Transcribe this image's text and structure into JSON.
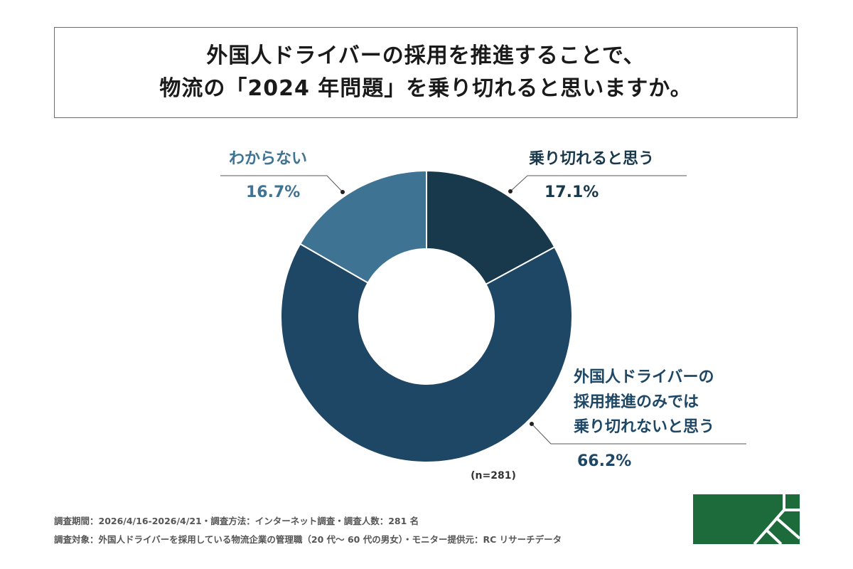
{
  "title": {
    "line1": "外国人ドライバーの採用を推進することで、",
    "line2": "物流の「2024 年問題」を乗り切れると思いますか。"
  },
  "chart_data": {
    "type": "pie",
    "donut": true,
    "n_label": "(n=281)",
    "slices": [
      {
        "label": "乗り切れると思う",
        "value": 17.1,
        "value_label": "17.1%",
        "color": "#18384c"
      },
      {
        "label": "外国人ドライバーの採用推進のみでは乗り切れないと思う",
        "value": 66.2,
        "value_label": "66.2%",
        "color": "#1e4766"
      },
      {
        "label": "わからない",
        "value": 16.7,
        "value_label": "16.7%",
        "color": "#3e7394"
      }
    ]
  },
  "labels": {
    "s0_name": "乗り切れると思う",
    "s1_name_1": "外国人ドライバーの",
    "s1_name_2": "採用推進のみでは",
    "s1_name_3": "乗り切れないと思う",
    "s2_name": "わからない"
  },
  "footer": {
    "line1": "調査期間：2026/4/16-2026/4/21・調査方法：インターネット調査・調査人数：281 名",
    "line2": "調査対象：外国人ドライバーを採用している物流企業の管理職（20 代～ 60 代の男女）・モニター提供元：RC リサーチデータ"
  },
  "colors": {
    "logo_green": "#1d6b3a",
    "label_dark": "#18384c",
    "label_mid": "#1e4766",
    "label_light": "#3e7394"
  }
}
